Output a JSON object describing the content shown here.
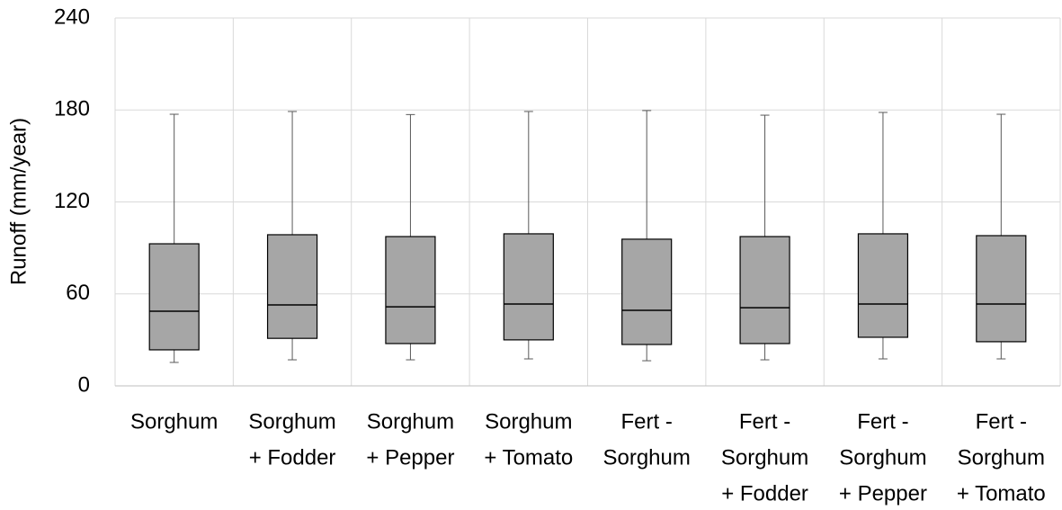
{
  "chart_data": {
    "type": "box",
    "y_label": "Runoff (mm/year)",
    "categories": [
      [
        "Sorghum"
      ],
      [
        "Sorghum",
        "+ Fodder"
      ],
      [
        "Sorghum",
        "+ Pepper"
      ],
      [
        "Sorghum",
        "+ Tomato"
      ],
      [
        "Fert -",
        "Sorghum"
      ],
      [
        "Fert -",
        "Sorghum",
        "+ Fodder"
      ],
      [
        "Fert -",
        "Sorghum",
        "+ Pepper"
      ],
      [
        "Fert -",
        "Sorghum",
        "+ Tomato"
      ]
    ],
    "min": [
      15.3,
      17,
      17,
      17.6,
      16.4,
      17,
      17.6,
      17.6
    ],
    "q1": [
      23.5,
      31,
      27.6,
      30,
      27,
      27.6,
      31.7,
      28.8
    ],
    "median": [
      48.7,
      52.8,
      51.6,
      53.4,
      49.3,
      51,
      53.4,
      53.4
    ],
    "q3": [
      92.7,
      98.6,
      97.4,
      99.2,
      95.7,
      97.4,
      99.2,
      98
    ],
    "max": [
      177.2,
      179,
      177,
      179,
      179.6,
      176.6,
      178.4,
      177.2
    ],
    "color": "#a6a6a6",
    "ylim": [
      0,
      240
    ],
    "yticks": [
      0,
      60,
      120,
      180,
      240
    ],
    "grid": true
  }
}
